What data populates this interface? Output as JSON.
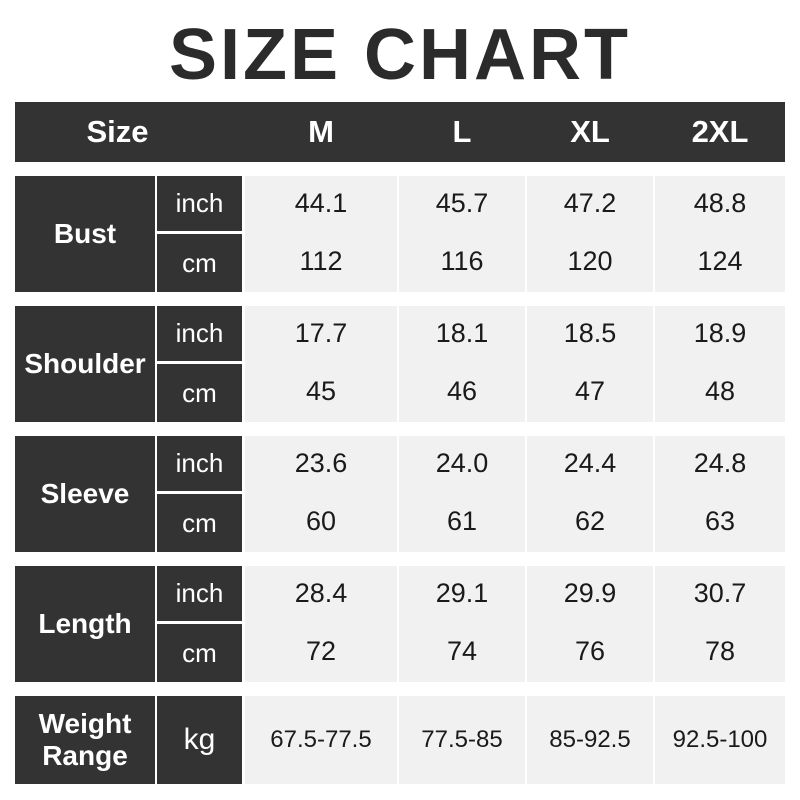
{
  "title": "SIZE CHART",
  "header": {
    "size_label": "Size",
    "sizes": [
      "M",
      "L",
      "XL",
      "2XL"
    ]
  },
  "rows": [
    {
      "label": "Bust",
      "units": [
        "inch",
        "cm"
      ],
      "values": [
        [
          "44.1",
          "45.7",
          "47.2",
          "48.8"
        ],
        [
          "112",
          "116",
          "120",
          "124"
        ]
      ]
    },
    {
      "label": "Shoulder",
      "units": [
        "inch",
        "cm"
      ],
      "values": [
        [
          "17.7",
          "18.1",
          "18.5",
          "18.9"
        ],
        [
          "45",
          "46",
          "47",
          "48"
        ]
      ]
    },
    {
      "label": "Sleeve",
      "units": [
        "inch",
        "cm"
      ],
      "values": [
        [
          "23.6",
          "24.0",
          "24.4",
          "24.8"
        ],
        [
          "60",
          "61",
          "62",
          "63"
        ]
      ]
    },
    {
      "label": "Length",
      "units": [
        "inch",
        "cm"
      ],
      "values": [
        [
          "28.4",
          "29.1",
          "29.9",
          "30.7"
        ],
        [
          "72",
          "74",
          "76",
          "78"
        ]
      ]
    }
  ],
  "weight": {
    "label_line1": "Weight",
    "label_line2": "Range",
    "unit": "kg",
    "values": [
      "67.5-77.5",
      "77.5-85",
      "85-92.5",
      "92.5-100"
    ]
  },
  "colors": {
    "dark": "#333333",
    "cell": "#f1f1f1"
  }
}
